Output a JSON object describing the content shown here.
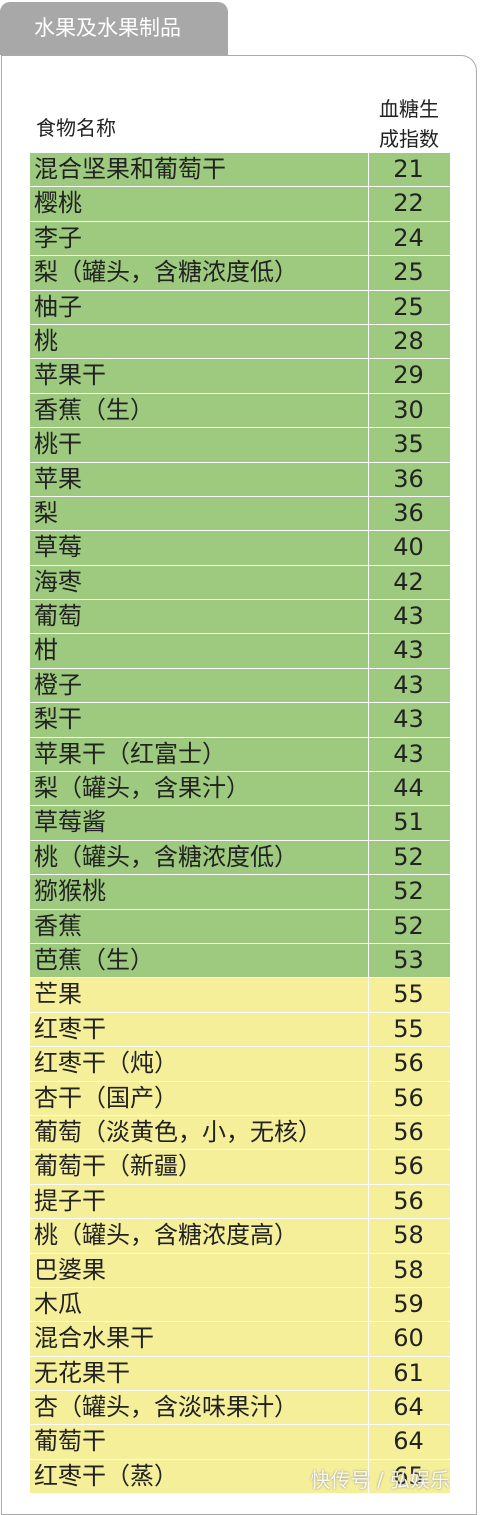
{
  "tab_title": "水果及水果制品",
  "header": {
    "name": "食物名称",
    "gi": [
      "血糖生",
      "成指数"
    ]
  },
  "groups": [
    {
      "color": "#9dca7e",
      "rows": [
        [
          "混合坚果和葡萄干",
          21
        ],
        [
          "樱桃",
          22
        ],
        [
          "李子",
          24
        ],
        [
          "梨（罐头，含糖浓度低）",
          25
        ],
        [
          "柚子",
          25
        ],
        [
          "桃",
          28
        ],
        [
          "苹果干",
          29
        ],
        [
          "香蕉（生）",
          30
        ],
        [
          "桃干",
          35
        ],
        [
          "苹果",
          36
        ],
        [
          "梨",
          36
        ],
        [
          "草莓",
          40
        ],
        [
          "海枣",
          42
        ],
        [
          "葡萄",
          43
        ],
        [
          "柑",
          43
        ],
        [
          "橙子",
          43
        ],
        [
          "梨干",
          43
        ],
        [
          "苹果干（红富士）",
          43
        ],
        [
          "梨（罐头，含果汁）",
          44
        ],
        [
          "草莓酱",
          51
        ],
        [
          "桃（罐头，含糖浓度低）",
          52
        ],
        [
          "猕猴桃",
          52
        ],
        [
          "香蕉",
          52
        ],
        [
          "芭蕉（生）",
          53
        ]
      ]
    },
    {
      "color": "#f5ef99",
      "rows": [
        [
          "芒果",
          55
        ],
        [
          "红枣干",
          55
        ],
        [
          "红枣干（炖）",
          56
        ],
        [
          "杏干（国产）",
          56
        ],
        [
          "葡萄（淡黄色，小，无核）",
          56
        ],
        [
          "葡萄干（新疆）",
          56
        ],
        [
          "提子干",
          56
        ],
        [
          "桃（罐头，含糖浓度高）",
          58
        ],
        [
          "巴婆果",
          58
        ],
        [
          "木瓜",
          59
        ],
        [
          "混合水果干",
          60
        ],
        [
          "无花果干",
          61
        ],
        [
          "杏（罐头，含淡味果汁）",
          64
        ],
        [
          "葡萄干",
          64
        ],
        [
          "红枣干（蒸）",
          65
        ]
      ]
    }
  ],
  "watermark": "快传号 / 弘娱乐"
}
